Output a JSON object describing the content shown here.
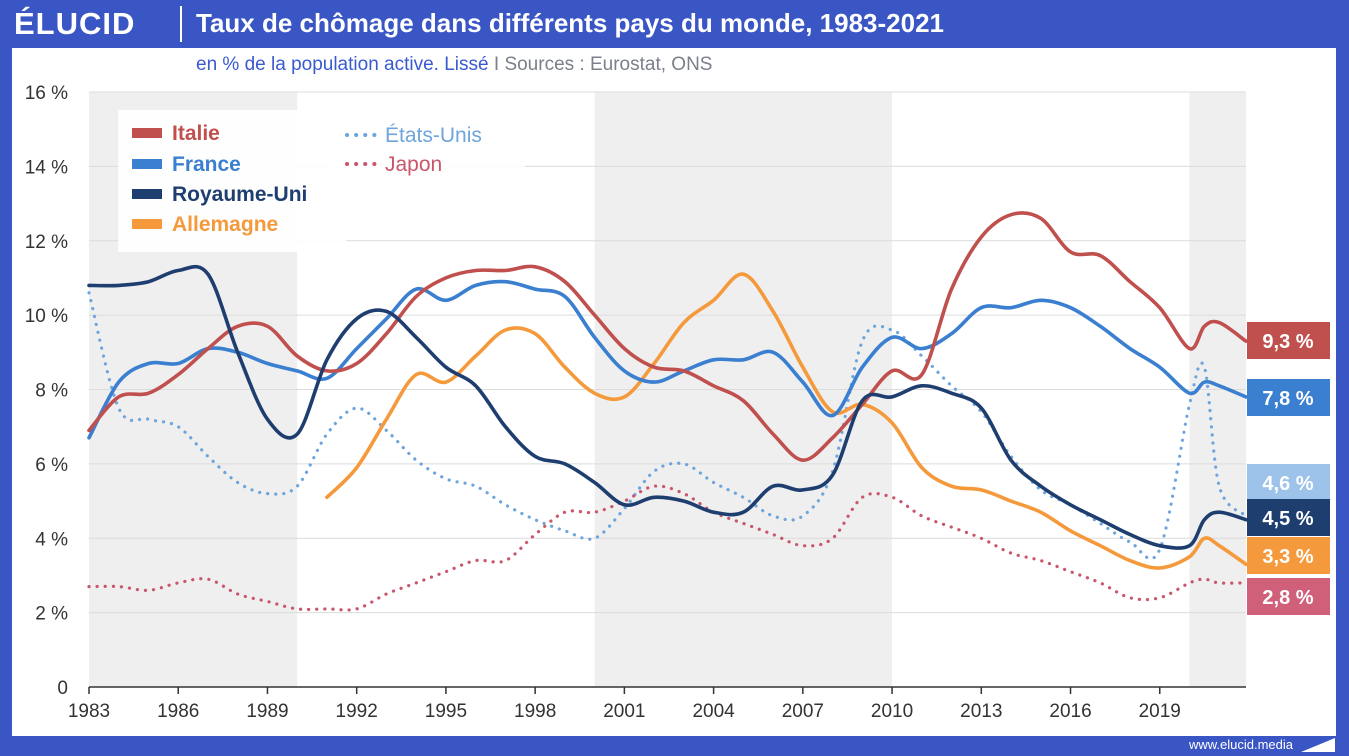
{
  "header": {
    "logo": "ÉLUCID",
    "title": "Taux de chômage dans différents pays du monde, 1983-2021"
  },
  "subtitle": {
    "text": "en % de la population active. Lissé",
    "separator": "I",
    "sources": "Sources : Eurostat, ONS"
  },
  "footer": {
    "url": "www.elucid.media"
  },
  "chart_data": {
    "type": "line",
    "title": "Taux de chômage dans différents pays du monde, 1983-2021",
    "xlabel": "",
    "ylabel": "",
    "xlim": [
      1983,
      2021.9
    ],
    "ylim": [
      0,
      16
    ],
    "x_ticks": [
      1983,
      1986,
      1989,
      1992,
      1995,
      1998,
      2001,
      2004,
      2007,
      2010,
      2013,
      2016,
      2019
    ],
    "y_ticks": [
      0,
      2,
      4,
      6,
      8,
      10,
      12,
      14,
      16
    ],
    "y_tick_labels": [
      "0",
      "2 %",
      "4 %",
      "6 %",
      "8 %",
      "10 %",
      "12 %",
      "14 %",
      "16 %"
    ],
    "shaded_bands": [
      [
        1983,
        1990
      ],
      [
        2000,
        2010
      ],
      [
        2020,
        2021.9
      ]
    ],
    "legend_position": "top-left",
    "series": [
      {
        "name": "Italie",
        "color": "#c0504d",
        "style": "solid",
        "end_label": "9,3 %",
        "x": [
          1983,
          1984,
          1985,
          1986,
          1987,
          1988,
          1989,
          1990,
          1991,
          1992,
          1993,
          1994,
          1995,
          1996,
          1997,
          1998,
          1999,
          2000,
          2001,
          2002,
          2003,
          2004,
          2005,
          2006,
          2007,
          2008,
          2009,
          2010,
          2011,
          2012,
          2013,
          2014,
          2015,
          2016,
          2017,
          2018,
          2019,
          2020,
          2020.5,
          2021,
          2021.9
        ],
        "y": [
          6.9,
          7.8,
          7.9,
          8.4,
          9.1,
          9.7,
          9.7,
          8.9,
          8.5,
          8.7,
          9.5,
          10.5,
          11.0,
          11.2,
          11.2,
          11.3,
          10.9,
          10.0,
          9.1,
          8.6,
          8.5,
          8.1,
          7.7,
          6.8,
          6.1,
          6.7,
          7.6,
          8.5,
          8.4,
          10.7,
          12.1,
          12.7,
          12.6,
          11.7,
          11.6,
          10.9,
          10.2,
          9.1,
          9.7,
          9.8,
          9.3
        ]
      },
      {
        "name": "France",
        "color": "#3a7fd0",
        "style": "solid",
        "end_label": "7,8 %",
        "x": [
          1983,
          1984,
          1985,
          1986,
          1987,
          1988,
          1989,
          1990,
          1991,
          1992,
          1993,
          1994,
          1995,
          1996,
          1997,
          1998,
          1999,
          2000,
          2001,
          2002,
          2003,
          2004,
          2005,
          2006,
          2007,
          2008,
          2009,
          2010,
          2011,
          2012,
          2013,
          2014,
          2015,
          2016,
          2017,
          2018,
          2019,
          2020,
          2020.5,
          2021,
          2021.9
        ],
        "y": [
          6.7,
          8.2,
          8.7,
          8.7,
          9.1,
          9.0,
          8.7,
          8.5,
          8.3,
          9.1,
          9.9,
          10.7,
          10.4,
          10.8,
          10.9,
          10.7,
          10.5,
          9.4,
          8.5,
          8.2,
          8.5,
          8.8,
          8.8,
          9.0,
          8.2,
          7.3,
          8.6,
          9.4,
          9.1,
          9.5,
          10.2,
          10.2,
          10.4,
          10.2,
          9.7,
          9.1,
          8.6,
          7.9,
          8.2,
          8.1,
          7.8
        ]
      },
      {
        "name": "Royaume-Uni",
        "color": "#1f3e70",
        "style": "solid",
        "end_label": "4,5 %",
        "x": [
          1983,
          1984,
          1985,
          1986,
          1987,
          1988,
          1989,
          1990,
          1991,
          1992,
          1993,
          1994,
          1995,
          1996,
          1997,
          1998,
          1999,
          2000,
          2001,
          2002,
          2003,
          2004,
          2005,
          2006,
          2007,
          2008,
          2009,
          2010,
          2011,
          2012,
          2013,
          2014,
          2015,
          2016,
          2017,
          2018,
          2019,
          2020,
          2020.5,
          2021,
          2021.9
        ],
        "y": [
          10.8,
          10.8,
          10.9,
          11.2,
          11.1,
          9.0,
          7.2,
          6.8,
          8.8,
          9.9,
          10.1,
          9.4,
          8.6,
          8.1,
          7.0,
          6.2,
          6.0,
          5.5,
          4.9,
          5.1,
          5.0,
          4.7,
          4.7,
          5.4,
          5.3,
          5.7,
          7.7,
          7.8,
          8.1,
          7.9,
          7.5,
          6.1,
          5.4,
          4.9,
          4.5,
          4.1,
          3.8,
          3.8,
          4.5,
          4.7,
          4.5
        ]
      },
      {
        "name": "Allemagne",
        "color": "#f59a3c",
        "style": "solid",
        "end_label": "3,3 %",
        "x": [
          1991,
          1992,
          1993,
          1994,
          1995,
          1996,
          1997,
          1998,
          1999,
          2000,
          2001,
          2002,
          2003,
          2004,
          2005,
          2006,
          2007,
          2008,
          2009,
          2010,
          2011,
          2012,
          2013,
          2014,
          2015,
          2016,
          2017,
          2018,
          2019,
          2020,
          2020.5,
          2021,
          2021.9
        ],
        "y": [
          5.1,
          5.9,
          7.2,
          8.4,
          8.2,
          8.9,
          9.6,
          9.5,
          8.6,
          7.9,
          7.8,
          8.7,
          9.8,
          10.4,
          11.1,
          10.1,
          8.6,
          7.4,
          7.6,
          7.1,
          5.9,
          5.4,
          5.3,
          5.0,
          4.7,
          4.2,
          3.8,
          3.4,
          3.2,
          3.5,
          4.0,
          3.8,
          3.3
        ]
      },
      {
        "name": "États-Unis",
        "color": "#6ea5dc",
        "style": "dotted",
        "end_label": "4,6 %",
        "x": [
          1983,
          1984,
          1985,
          1986,
          1987,
          1988,
          1989,
          1990,
          1991,
          1992,
          1993,
          1994,
          1995,
          1996,
          1997,
          1998,
          1999,
          2000,
          2001,
          2002,
          2003,
          2004,
          2005,
          2006,
          2007,
          2008,
          2009,
          2010,
          2011,
          2012,
          2013,
          2014,
          2015,
          2016,
          2017,
          2018,
          2019,
          2020,
          2020.5,
          2021,
          2021.9
        ],
        "y": [
          10.6,
          7.5,
          7.2,
          7.0,
          6.2,
          5.5,
          5.2,
          5.4,
          6.8,
          7.5,
          6.9,
          6.1,
          5.6,
          5.4,
          4.9,
          4.5,
          4.2,
          4.0,
          4.8,
          5.8,
          6.0,
          5.5,
          5.1,
          4.6,
          4.6,
          5.8,
          9.3,
          9.6,
          8.9,
          8.1,
          7.4,
          6.2,
          5.3,
          4.9,
          4.4,
          3.9,
          3.7,
          7.6,
          8.6,
          5.4,
          4.6
        ]
      },
      {
        "name": "Japon",
        "color": "#c9566b",
        "style": "dotted",
        "end_label": "2,8 %",
        "x": [
          1983,
          1984,
          1985,
          1986,
          1987,
          1988,
          1989,
          1990,
          1991,
          1992,
          1993,
          1994,
          1995,
          1996,
          1997,
          1998,
          1999,
          2000,
          2001,
          2002,
          2003,
          2004,
          2005,
          2006,
          2007,
          2008,
          2009,
          2010,
          2011,
          2012,
          2013,
          2014,
          2015,
          2016,
          2017,
          2018,
          2019,
          2020,
          2020.5,
          2021,
          2021.9
        ],
        "y": [
          2.7,
          2.7,
          2.6,
          2.8,
          2.9,
          2.5,
          2.3,
          2.1,
          2.1,
          2.1,
          2.5,
          2.8,
          3.1,
          3.4,
          3.4,
          4.1,
          4.7,
          4.7,
          5.0,
          5.4,
          5.2,
          4.7,
          4.4,
          4.1,
          3.8,
          4.0,
          5.1,
          5.1,
          4.6,
          4.3,
          4.0,
          3.6,
          3.4,
          3.1,
          2.8,
          2.4,
          2.4,
          2.8,
          2.9,
          2.8,
          2.8
        ]
      }
    ]
  }
}
